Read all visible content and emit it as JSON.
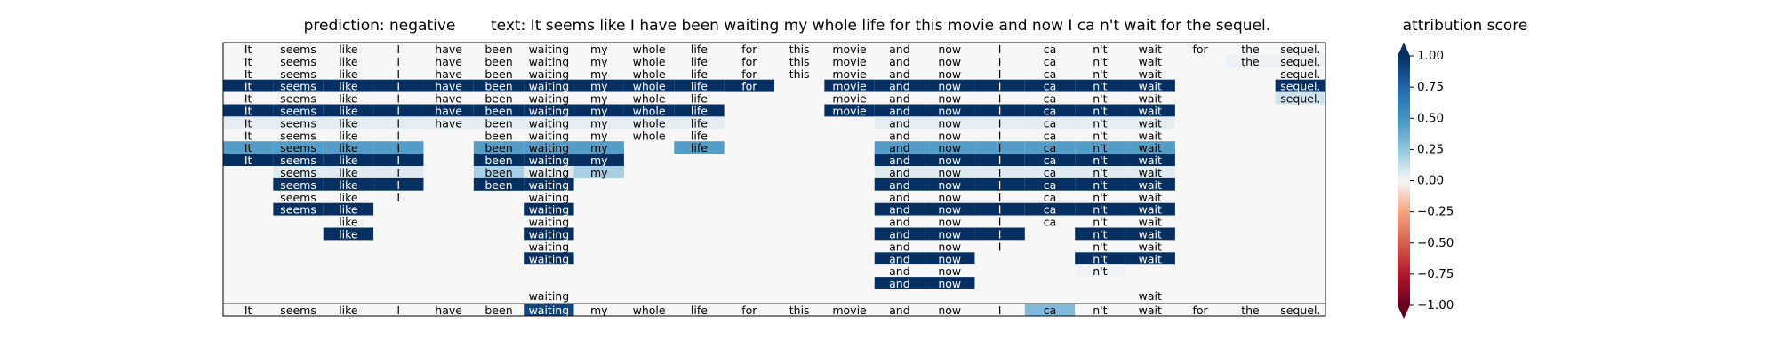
{
  "header": {
    "prediction": "prediction:  negative",
    "text": "text:  It seems like I have been waiting my whole life for this movie and now I ca n't wait for the sequel.",
    "colorbar_title": "attribution score"
  },
  "chart_data": {
    "type": "heatmap",
    "tokens": [
      "It",
      "seems",
      "like",
      "I",
      "have",
      "been",
      "waiting",
      "my",
      "whole",
      "life",
      "for",
      "this",
      "movie",
      "and",
      "now",
      "I",
      "ca",
      "n't",
      "wait",
      "for",
      "the",
      "sequel."
    ],
    "colorbar": {
      "cmap": "RdBu",
      "vmin": -1.0,
      "vmax": 1.0,
      "ticks": [
        1.0,
        0.75,
        0.5,
        0.25,
        0.0,
        -0.25,
        -0.5,
        -0.75,
        -1.0
      ],
      "tick_labels": [
        "1.00",
        "0.75",
        "0.50",
        "0.25",
        "0.00",
        "−0.25",
        "−0.50",
        "−0.75",
        "−1.00"
      ],
      "extend": "both"
    },
    "rows": [
      {
        "tokens": [
          0,
          1,
          2,
          3,
          4,
          5,
          6,
          7,
          8,
          9,
          10,
          11,
          12,
          13,
          14,
          15,
          16,
          17,
          18,
          19,
          20,
          21
        ],
        "values": [
          0,
          0,
          0,
          0,
          0,
          0,
          0,
          0,
          0,
          0,
          0,
          0,
          0,
          0,
          0,
          0,
          0,
          0,
          0,
          0,
          0,
          0
        ]
      },
      {
        "tokens": [
          0,
          1,
          2,
          3,
          4,
          5,
          6,
          7,
          8,
          9,
          10,
          11,
          12,
          13,
          14,
          15,
          16,
          17,
          18,
          20,
          21
        ],
        "values": [
          0,
          0,
          0,
          0,
          0,
          0,
          0,
          0,
          0,
          0,
          0,
          0,
          0,
          0,
          0,
          0,
          0,
          0,
          0,
          0.03,
          0.03
        ]
      },
      {
        "tokens": [
          0,
          1,
          2,
          3,
          4,
          5,
          6,
          7,
          8,
          9,
          10,
          11,
          12,
          13,
          14,
          15,
          16,
          17,
          18,
          21
        ],
        "values": [
          0,
          0,
          0,
          0,
          0,
          0,
          0,
          0,
          0,
          0,
          0,
          0,
          0,
          0,
          0,
          0,
          0,
          0,
          0,
          0
        ]
      },
      {
        "tokens": [
          0,
          1,
          2,
          3,
          4,
          5,
          6,
          7,
          8,
          9,
          10,
          12,
          13,
          14,
          15,
          16,
          17,
          18,
          21
        ],
        "values": [
          1,
          1,
          1,
          1,
          1,
          1,
          1,
          1,
          1,
          1,
          1,
          1,
          1,
          1,
          1,
          1,
          1,
          1,
          1
        ]
      },
      {
        "tokens": [
          0,
          1,
          2,
          3,
          4,
          5,
          6,
          7,
          8,
          9,
          12,
          13,
          14,
          15,
          16,
          17,
          18,
          21
        ],
        "values": [
          0,
          0,
          0,
          0,
          0,
          0,
          0,
          0,
          0,
          0,
          0,
          0,
          0,
          0,
          0,
          0,
          0,
          0.1
        ]
      },
      {
        "tokens": [
          0,
          1,
          2,
          3,
          4,
          5,
          6,
          7,
          8,
          9,
          12,
          13,
          14,
          15,
          16,
          17,
          18
        ],
        "values": [
          1,
          1,
          1,
          1,
          1,
          1,
          1,
          1,
          1,
          1,
          1,
          1,
          1,
          1,
          1,
          1,
          1
        ]
      },
      {
        "tokens": [
          0,
          1,
          2,
          3,
          4,
          5,
          6,
          7,
          8,
          9,
          13,
          14,
          15,
          16,
          17,
          18
        ],
        "values": [
          0.05,
          0.05,
          0.05,
          0.05,
          0.05,
          0.05,
          0.05,
          0.05,
          0.05,
          0.05,
          0.05,
          0.05,
          0.05,
          0.05,
          0.05,
          0.05
        ]
      },
      {
        "tokens": [
          0,
          1,
          2,
          3,
          5,
          6,
          7,
          8,
          9,
          13,
          14,
          15,
          16,
          17,
          18
        ],
        "values": [
          0,
          0,
          0,
          0,
          0,
          0,
          0,
          0,
          0,
          0,
          0,
          0,
          0,
          0,
          0
        ]
      },
      {
        "tokens": [
          0,
          1,
          2,
          3,
          5,
          6,
          7,
          9,
          13,
          14,
          15,
          16,
          17,
          18
        ],
        "values": [
          0.45,
          0.45,
          0.45,
          0.45,
          0.45,
          0.45,
          0.45,
          0.45,
          0.45,
          0.45,
          0.45,
          0.45,
          0.45,
          0.45
        ]
      },
      {
        "tokens": [
          0,
          1,
          2,
          3,
          5,
          6,
          7,
          13,
          14,
          15,
          16,
          17,
          18
        ],
        "values": [
          1,
          1,
          1,
          1,
          1,
          1,
          1,
          1,
          1,
          1,
          1,
          1,
          1
        ]
      },
      {
        "tokens": [
          1,
          2,
          3,
          5,
          6,
          7,
          13,
          14,
          15,
          16,
          17,
          18
        ],
        "values": [
          0.06,
          0.06,
          0.06,
          0.2,
          0.06,
          0.2,
          0.06,
          0.06,
          0.06,
          0.06,
          0.06,
          0.06
        ]
      },
      {
        "tokens": [
          1,
          2,
          3,
          5,
          6,
          13,
          14,
          15,
          16,
          17,
          18
        ],
        "values": [
          1,
          1,
          1,
          1,
          1,
          1,
          1,
          1,
          1,
          1,
          1
        ]
      },
      {
        "tokens": [
          1,
          2,
          3,
          6,
          13,
          14,
          15,
          16,
          17,
          18
        ],
        "values": [
          0,
          0,
          0,
          0,
          0,
          0,
          0,
          0,
          0,
          0
        ]
      },
      {
        "tokens": [
          1,
          2,
          6,
          13,
          14,
          15,
          16,
          17,
          18
        ],
        "values": [
          1,
          1,
          1,
          1,
          1,
          1,
          1,
          1,
          1
        ]
      },
      {
        "tokens": [
          2,
          6,
          13,
          14,
          15,
          16,
          17,
          18
        ],
        "values": [
          0,
          0,
          0,
          0,
          0,
          0,
          0,
          0
        ]
      },
      {
        "tokens": [
          2,
          6,
          13,
          14,
          15,
          17,
          18
        ],
        "values": [
          1,
          1,
          1,
          1,
          1,
          1,
          1
        ]
      },
      {
        "tokens": [
          6,
          13,
          14,
          15,
          17,
          18
        ],
        "values": [
          0,
          0,
          0,
          0,
          0,
          0
        ]
      },
      {
        "tokens": [
          6,
          13,
          14,
          17,
          18
        ],
        "values": [
          1,
          1,
          1,
          1,
          1
        ]
      },
      {
        "tokens": [
          13,
          14,
          17
        ],
        "values": [
          0,
          0,
          0.02
        ]
      },
      {
        "tokens": [
          13,
          14
        ],
        "values": [
          1,
          1
        ]
      },
      {
        "tokens": [
          6,
          18
        ],
        "values": [
          0,
          0
        ]
      },
      {
        "tokens": [
          0,
          1,
          2,
          3,
          4,
          5,
          6,
          7,
          8,
          9,
          10,
          11,
          12,
          13,
          14,
          15,
          16,
          17,
          18,
          19,
          20,
          21
        ],
        "values": [
          0,
          0,
          0,
          0,
          0,
          0,
          0.9,
          0,
          0,
          0,
          0,
          0,
          0,
          0,
          0,
          0,
          0.3,
          0,
          0,
          0,
          0,
          0
        ]
      }
    ]
  }
}
